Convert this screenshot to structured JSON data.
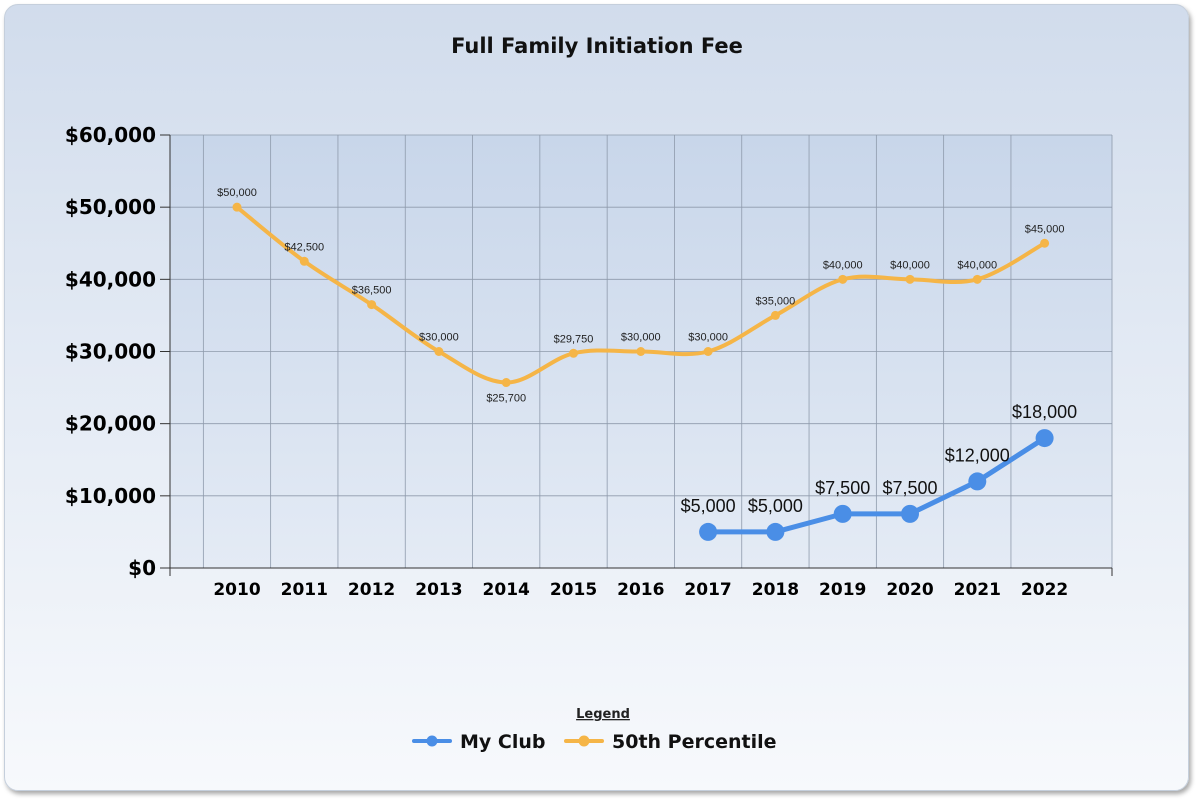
{
  "chart_data": {
    "type": "line",
    "title": "Full Family Initiation Fee",
    "xlabel": "",
    "ylabel": "",
    "ylim": [
      0,
      60000
    ],
    "y_ticks": [
      0,
      10000,
      20000,
      30000,
      40000,
      50000,
      60000
    ],
    "y_tick_labels": [
      "$0",
      "$10,000",
      "$20,000",
      "$30,000",
      "$40,000",
      "$50,000",
      "$60,000"
    ],
    "categories": [
      "2010",
      "2011",
      "2012",
      "2013",
      "2014",
      "2015",
      "2016",
      "2017",
      "2018",
      "2019",
      "2020",
      "2021",
      "2022"
    ],
    "series": [
      {
        "name": "My Club",
        "color": "#4a8ee6",
        "values": [
          null,
          null,
          null,
          null,
          null,
          null,
          null,
          5000,
          5000,
          7500,
          7500,
          12000,
          18000
        ],
        "labels": [
          null,
          null,
          null,
          null,
          null,
          null,
          null,
          "$5,000",
          "$5,000",
          "$7,500",
          "$7,500",
          "$12,000",
          "$18,000"
        ]
      },
      {
        "name": "50th Percentile",
        "color": "#f5b547",
        "values": [
          50000,
          42500,
          36500,
          30000,
          25700,
          29750,
          30000,
          30000,
          35000,
          40000,
          40000,
          40000,
          45000
        ],
        "labels": [
          "$50,000",
          "$42,500",
          "$36,500",
          "$30,000",
          "$25,700",
          "$29,750",
          "$30,000",
          "$30,000",
          "$35,000",
          "$40,000",
          "$40,000",
          "$40,000",
          "$45,000"
        ]
      }
    ],
    "legend": {
      "title": "Legend",
      "position": "bottom-center"
    },
    "grid": true
  }
}
